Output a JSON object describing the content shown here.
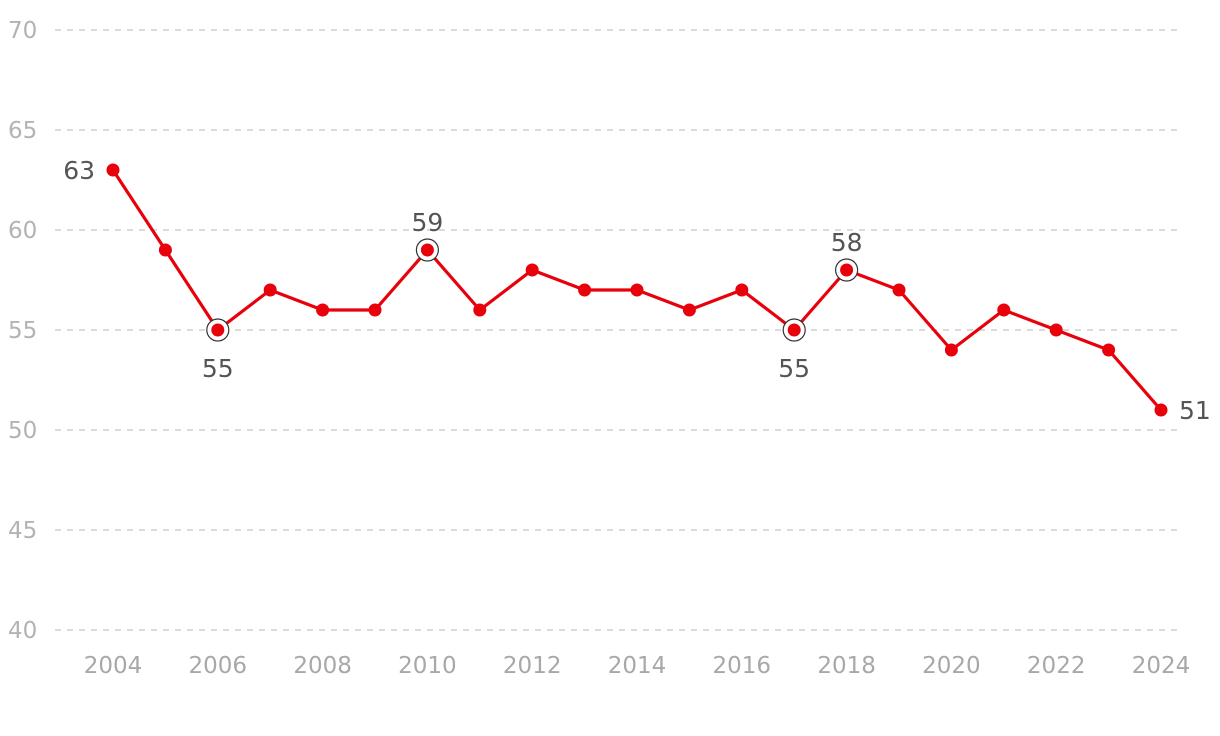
{
  "chart_data": {
    "type": "line",
    "title": "",
    "xlabel": "",
    "ylabel": "",
    "x": [
      2004,
      2005,
      2006,
      2007,
      2008,
      2009,
      2010,
      2011,
      2012,
      2013,
      2014,
      2015,
      2016,
      2017,
      2018,
      2019,
      2020,
      2021,
      2022,
      2023,
      2024
    ],
    "series": [
      {
        "values": [
          63,
          59,
          55,
          57,
          56,
          56,
          59,
          56,
          58,
          57,
          57,
          56,
          57,
          55,
          58,
          57,
          54,
          56,
          55,
          54,
          51
        ],
        "color": "#e8000b"
      }
    ],
    "ylim": [
      40,
      70
    ],
    "yticks": [
      40,
      45,
      50,
      55,
      60,
      65,
      70
    ],
    "xticks": [
      2004,
      2006,
      2008,
      2010,
      2012,
      2014,
      2016,
      2018,
      2020,
      2022,
      2024
    ],
    "grid": "horizontal dashed",
    "annotations": [
      {
        "x": 2004,
        "value": 63,
        "label": "63",
        "position": "left",
        "circled": false
      },
      {
        "x": 2006,
        "value": 55,
        "label": "55",
        "position": "below",
        "circled": true
      },
      {
        "x": 2010,
        "value": 59,
        "label": "59",
        "position": "above",
        "circled": true
      },
      {
        "x": 2017,
        "value": 55,
        "label": "55",
        "position": "below",
        "circled": true
      },
      {
        "x": 2018,
        "value": 58,
        "label": "58",
        "position": "above",
        "circled": true
      },
      {
        "x": 2024,
        "value": 51,
        "label": "51",
        "position": "right",
        "circled": false
      }
    ]
  }
}
